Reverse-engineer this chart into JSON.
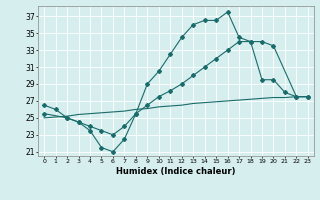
{
  "xlabel": "Humidex (Indice chaleur)",
  "background_color": "#d6eeee",
  "line_color": "#1a6b6b",
  "grid_color": "#ffffff",
  "xlim": [
    -0.5,
    23.5
  ],
  "ylim": [
    20.5,
    38.2
  ],
  "xticks": [
    0,
    1,
    2,
    3,
    4,
    5,
    6,
    7,
    8,
    9,
    10,
    11,
    12,
    13,
    14,
    15,
    16,
    17,
    18,
    19,
    20,
    21,
    22,
    23
  ],
  "yticks": [
    21,
    23,
    25,
    27,
    29,
    31,
    33,
    35,
    37
  ],
  "line1_x": [
    0,
    1,
    2,
    3,
    4,
    5,
    6,
    7,
    8,
    9,
    10,
    11,
    12,
    13,
    14,
    15,
    16,
    17,
    18,
    19,
    20,
    21,
    22,
    23
  ],
  "line1_y": [
    26.5,
    26.0,
    25.0,
    24.5,
    23.5,
    21.5,
    21.0,
    22.5,
    25.5,
    29.0,
    30.5,
    32.5,
    34.5,
    36.0,
    36.5,
    36.5,
    37.5,
    34.5,
    34.0,
    29.5,
    29.5,
    28.0,
    27.5,
    27.5
  ],
  "line2_x": [
    0,
    2,
    3,
    4,
    5,
    6,
    7,
    8,
    9,
    10,
    11,
    12,
    13,
    14,
    15,
    16,
    17,
    18,
    19,
    20,
    22,
    23
  ],
  "line2_y": [
    25.5,
    25.0,
    24.5,
    24.0,
    23.5,
    23.0,
    24.0,
    25.5,
    26.5,
    27.5,
    28.2,
    29.0,
    30.0,
    31.0,
    32.0,
    33.0,
    34.0,
    34.0,
    34.0,
    33.5,
    27.5,
    27.5
  ],
  "line3_x": [
    0,
    1,
    2,
    3,
    4,
    5,
    6,
    7,
    8,
    9,
    10,
    11,
    12,
    13,
    14,
    15,
    16,
    17,
    18,
    19,
    20,
    21,
    22,
    23
  ],
  "line3_y": [
    25.0,
    25.1,
    25.2,
    25.4,
    25.5,
    25.6,
    25.7,
    25.8,
    26.0,
    26.1,
    26.3,
    26.4,
    26.5,
    26.7,
    26.8,
    26.9,
    27.0,
    27.1,
    27.2,
    27.3,
    27.4,
    27.4,
    27.5,
    27.5
  ]
}
